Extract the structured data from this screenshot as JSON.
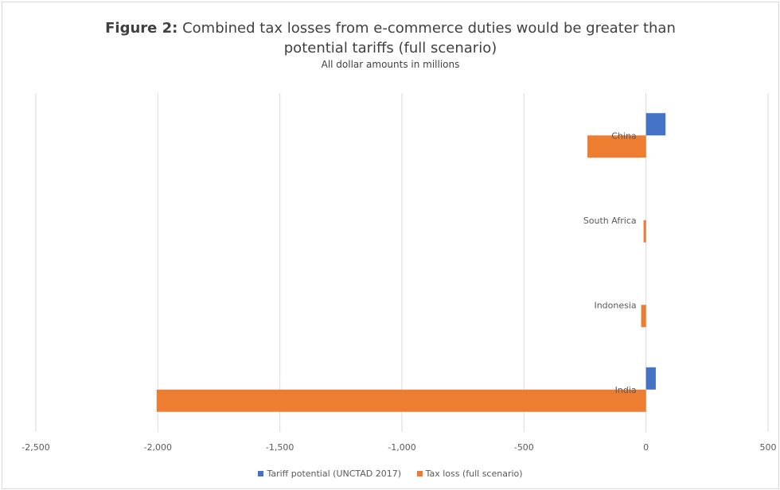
{
  "colors": {
    "tariff": "#4472C4",
    "tax_loss": "#ED7D31",
    "gridline": "#d9d9d9",
    "text": "#595959"
  },
  "chart_data": {
    "type": "bar",
    "orientation": "horizontal",
    "title_prefix": "Figure 2:",
    "title_line1": "Combined tax losses from e-commerce duties would be greater than",
    "title_line2": "potential tariffs (full scenario)",
    "subtitle": "All dollar amounts in millions",
    "categories": [
      "China",
      "South Africa",
      "Indonesia",
      "India"
    ],
    "series": [
      {
        "name": "Tariff potential (UNCTAD 2017)",
        "values": [
          80,
          0,
          0,
          40
        ]
      },
      {
        "name": "Tax loss (full scenario)",
        "values": [
          -240,
          -10,
          -20,
          -2005
        ]
      }
    ],
    "xlim": [
      -2500,
      500
    ],
    "xticks": [
      -2500,
      -2000,
      -1500,
      -1000,
      -500,
      0,
      500
    ],
    "xtick_labels": [
      "-2,500",
      "-2,000",
      "-1,500",
      "-1,000",
      "-500",
      "0",
      "500"
    ],
    "grid": "vertical",
    "legend_position": "bottom"
  }
}
